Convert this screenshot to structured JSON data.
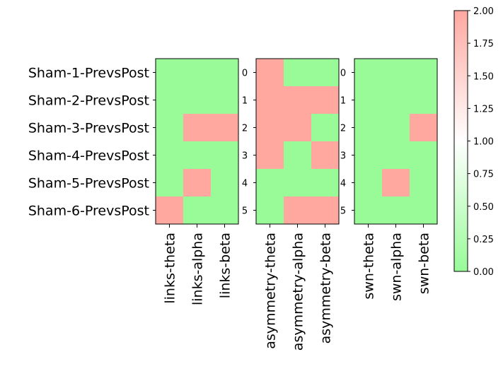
{
  "chart_data": {
    "type": "heatmap",
    "rows": [
      "Sham-1-PrevsPost",
      "Sham-2-PrevsPost",
      "Sham-3-PrevsPost",
      "Sham-4-PrevsPost",
      "Sham-5-PrevsPost",
      "Sham-6-PrevsPost"
    ],
    "row_indices": [
      "0",
      "1",
      "2",
      "3",
      "4",
      "5"
    ],
    "panels": [
      {
        "columns": [
          "links-theta",
          "links-alpha",
          "links-beta"
        ],
        "values": [
          [
            0,
            0,
            0
          ],
          [
            0,
            0,
            0
          ],
          [
            0,
            2,
            2
          ],
          [
            0,
            0,
            0
          ],
          [
            0,
            2,
            0
          ],
          [
            2,
            0,
            0
          ]
        ]
      },
      {
        "columns": [
          "asymmetry-theta",
          "asymmetry-alpha",
          "asymmetry-beta"
        ],
        "values": [
          [
            2,
            0,
            0
          ],
          [
            2,
            2,
            2
          ],
          [
            2,
            2,
            0
          ],
          [
            2,
            0,
            2
          ],
          [
            0,
            0,
            0
          ],
          [
            0,
            2,
            2
          ]
        ]
      },
      {
        "columns": [
          "swn-theta",
          "swn-alpha",
          "swn-beta"
        ],
        "values": [
          [
            0,
            0,
            0
          ],
          [
            0,
            0,
            0
          ],
          [
            0,
            0,
            2
          ],
          [
            0,
            0,
            0
          ],
          [
            0,
            2,
            0
          ],
          [
            0,
            0,
            0
          ]
        ]
      }
    ],
    "colorbar": {
      "range": [
        0,
        2
      ],
      "ticks": [
        "0.00",
        "0.25",
        "0.50",
        "0.75",
        "1.00",
        "1.25",
        "1.50",
        "1.75",
        "2.00"
      ],
      "colors": {
        "low": "#98fb98",
        "mid": "#ffffff",
        "high": "#ffa8a0"
      }
    }
  }
}
